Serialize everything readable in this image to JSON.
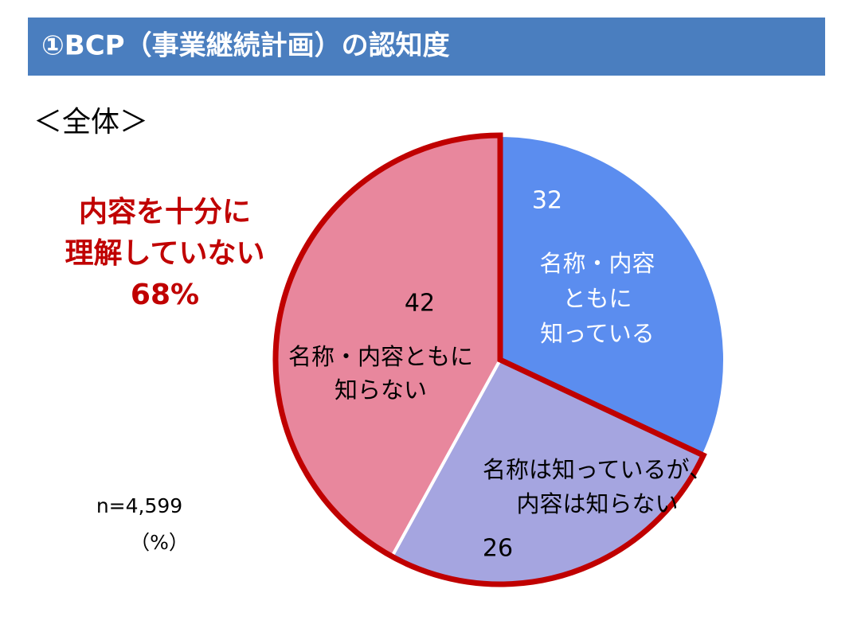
{
  "chart_data": {
    "type": "pie",
    "title": "①BCP（事業継続計画）の認知度",
    "subtitle": "＜全体＞",
    "categories": [
      [
        "名称・内容",
        "ともに",
        "知っている"
      ],
      [
        "名称は知っているが、",
        "内容は知らない"
      ],
      [
        "名称・内容ともに",
        "知らない"
      ]
    ],
    "values": [
      32,
      26,
      42
    ],
    "colors": [
      "#5b8def",
      "#a5a5e0",
      "#e8879d"
    ],
    "outline": {
      "color": "#c00000",
      "slices": [
        1,
        2
      ]
    },
    "annotation": [
      "内容を十分に",
      "理解していない",
      "68%"
    ],
    "note": "n=4,599",
    "unit": "（%）"
  }
}
